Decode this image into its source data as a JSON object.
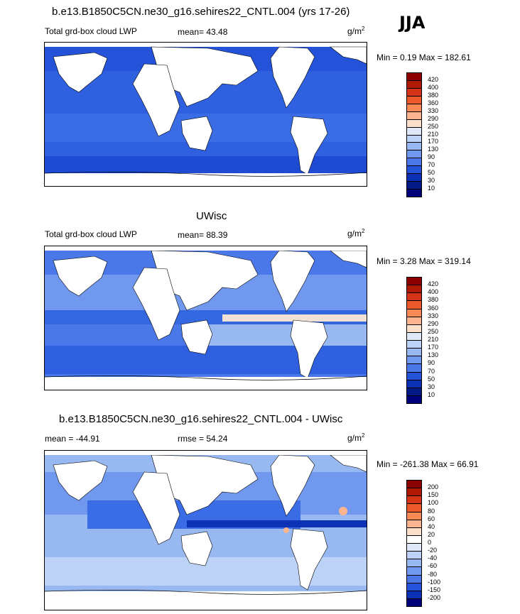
{
  "season": "JJA",
  "panels": [
    {
      "title": "b.e13.B1850C5CN.ne30_g16.sehires22_CNTL.004 (yrs 17-26)",
      "left_label": "Total grd-box cloud LWP",
      "center_label": "mean=  43.48",
      "units": "g/m",
      "units_sup": "2",
      "minmax": "Min =   0.19 Max = 182.61",
      "colorbar_labels": [
        "420",
        "400",
        "380",
        "360",
        "330",
        "290",
        "250",
        "210",
        "170",
        "130",
        "90",
        "70",
        "50",
        "30",
        "10"
      ],
      "colors": [
        "#8b0000",
        "#b01a05",
        "#d43516",
        "#ec5a2c",
        "#f98a55",
        "#fbb48f",
        "#fde0cb",
        "#dfe9f8",
        "#bcd2f6",
        "#98b8f2",
        "#6f98ee",
        "#4a78e8",
        "#2453d9",
        "#0d31b5",
        "#041a86",
        "#00007a"
      ]
    },
    {
      "title": "UWisc",
      "left_label": "Total grd-box cloud LWP",
      "center_label": "mean=  88.39",
      "units": "g/m",
      "units_sup": "2",
      "minmax": "Min =   3.28 Max = 319.14",
      "colorbar_labels": [
        "420",
        "400",
        "380",
        "360",
        "330",
        "290",
        "250",
        "210",
        "170",
        "130",
        "90",
        "70",
        "50",
        "30",
        "10"
      ],
      "colors": [
        "#8b0000",
        "#b01a05",
        "#d43516",
        "#ec5a2c",
        "#f98a55",
        "#fbb48f",
        "#fde0cb",
        "#dfe9f8",
        "#bcd2f6",
        "#98b8f2",
        "#6f98ee",
        "#4a78e8",
        "#2453d9",
        "#0d31b5",
        "#041a86",
        "#00007a"
      ]
    },
    {
      "title": "b.e13.B1850C5CN.ne30_g16.sehires22_CNTL.004 - UWisc",
      "left_label": "mean = -44.91",
      "center_label": "rmse =  54.24",
      "units": "g/m",
      "units_sup": "2",
      "minmax": "Min = -261.38 Max =  66.91",
      "colorbar_labels": [
        "200",
        "150",
        "100",
        "80",
        "60",
        "40",
        "20",
        "0",
        "-20",
        "-40",
        "-60",
        "-80",
        "-100",
        "-150",
        "-200"
      ],
      "colors": [
        "#8b0000",
        "#b01a05",
        "#d43516",
        "#ec5a2c",
        "#f98a55",
        "#fbb48f",
        "#fde0cb",
        "#ffffff",
        "#dfe9f8",
        "#bcd2f6",
        "#98b8f2",
        "#6f98ee",
        "#4a78e8",
        "#2453d9",
        "#0d31b5",
        "#00007a"
      ]
    }
  ]
}
